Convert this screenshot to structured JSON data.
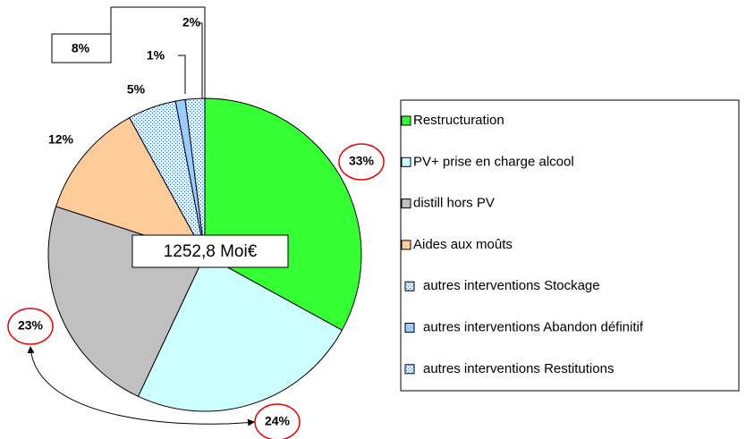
{
  "chart_data": {
    "type": "pie",
    "categories": [
      "Restructuration",
      "PV+ prise en charge alcool",
      "distill hors PV",
      "Aides aux moûts",
      "autres interventions Stockage",
      "autres interventions Abandon définitif",
      "autres interventions Restitutions"
    ],
    "values": [
      33,
      24,
      23,
      12,
      5,
      1,
      2
    ],
    "value_labels": [
      "33%",
      "24%",
      "23%",
      "12%",
      "5%",
      "1%",
      "2%"
    ],
    "colors": [
      "#33ff33",
      "#ccffff",
      "#c0c0c0",
      "#ffcc99",
      "#cce6ff",
      "#99ccff",
      "#cce6ff"
    ],
    "patterns": [
      null,
      null,
      null,
      null,
      "dots",
      null,
      "dots"
    ],
    "center_label": "1252,8 Moi€",
    "group_label": "8%"
  }
}
